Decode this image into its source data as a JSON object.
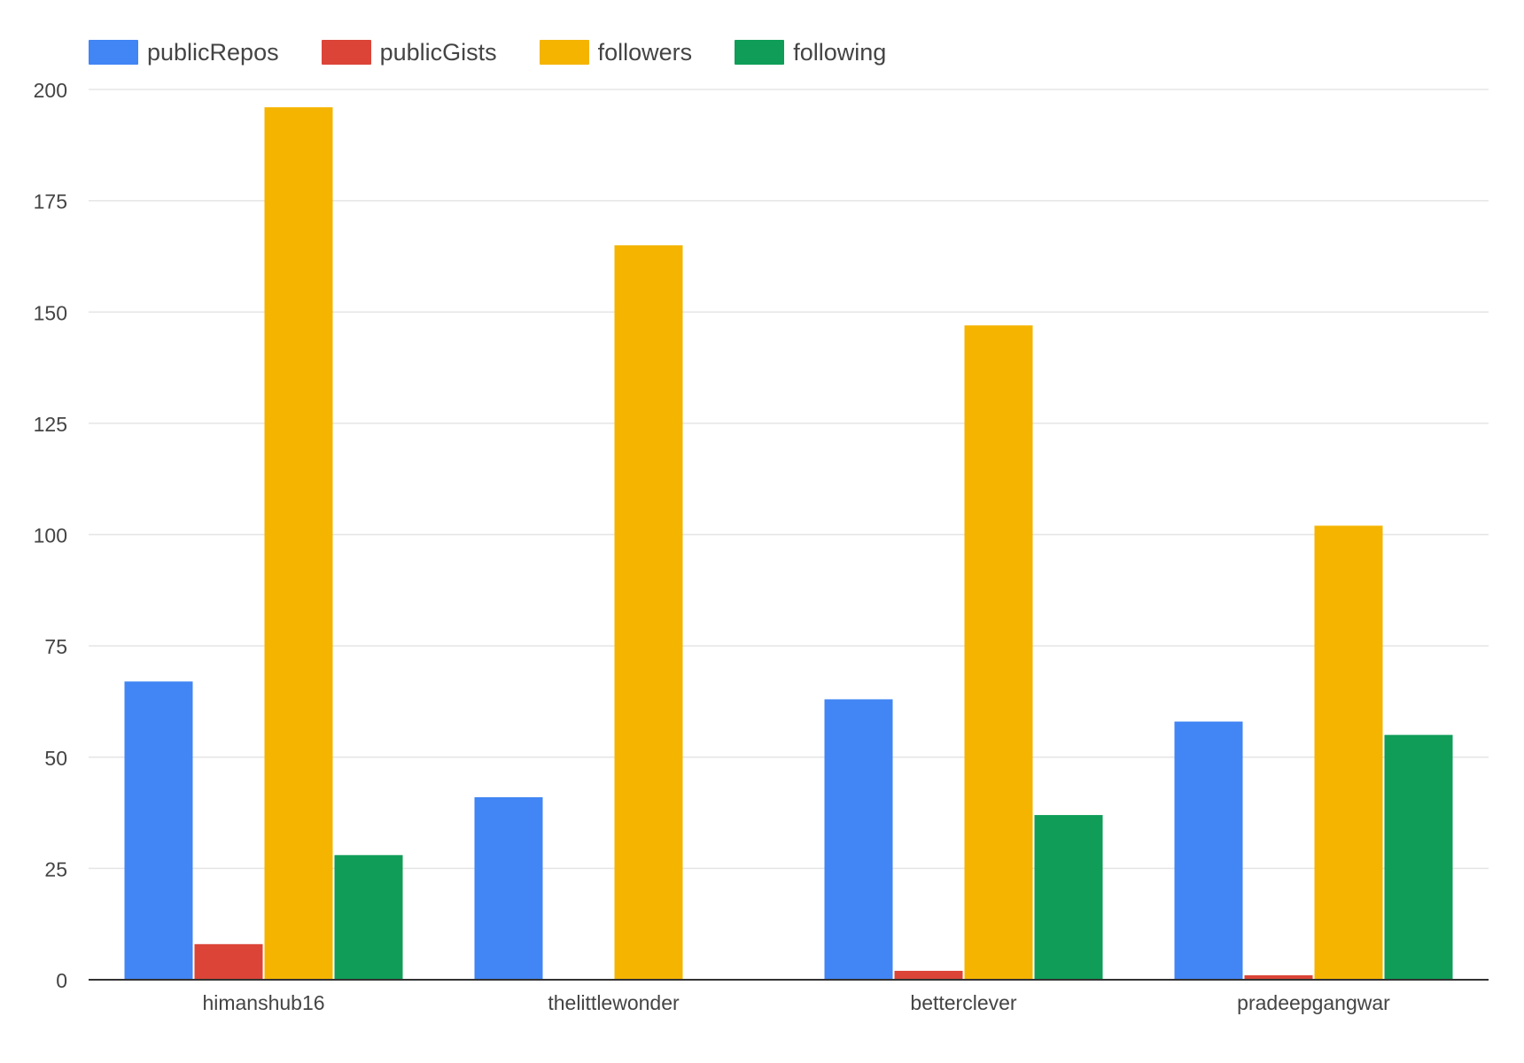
{
  "colors": {
    "publicRepos": "#4285F4",
    "publicGists": "#DB4437",
    "followers": "#F4B400",
    "following": "#0F9D58",
    "grid": "#e5e5e5",
    "baseline": "#333333",
    "text": "#444444"
  },
  "chart_data": {
    "type": "bar",
    "title": "",
    "xlabel": "",
    "ylabel": "",
    "ylim": [
      0,
      200
    ],
    "yticks": [
      0,
      25,
      50,
      75,
      100,
      125,
      150,
      175,
      200
    ],
    "grid": true,
    "legend_position": "top-left",
    "categories": [
      "himanshub16",
      "thelittlewonder",
      "betterclever",
      "pradeepgangwar"
    ],
    "series": [
      {
        "name": "publicRepos",
        "color": "#4285F4",
        "values": [
          67,
          41,
          63,
          58
        ]
      },
      {
        "name": "publicGists",
        "color": "#DB4437",
        "values": [
          8,
          0,
          2,
          1
        ]
      },
      {
        "name": "followers",
        "color": "#F4B400",
        "values": [
          196,
          165,
          147,
          102
        ]
      },
      {
        "name": "following",
        "color": "#0F9D58",
        "values": [
          28,
          0,
          37,
          55
        ]
      }
    ]
  }
}
